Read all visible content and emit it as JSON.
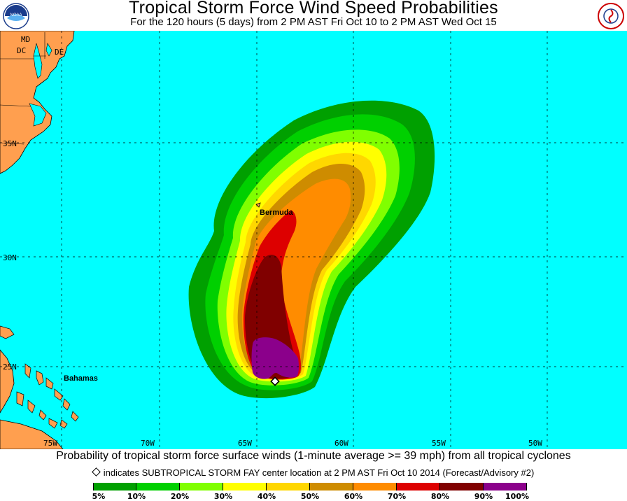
{
  "header": {
    "title": "Tropical Storm Force Wind Speed Probabilities",
    "subtitle": "For the 120 hours (5 days) from 2 PM AST Fri Oct 10 to 2 PM AST Wed Oct 15",
    "left_logo": "noaa-logo",
    "right_logo": "national-weather-service-logo"
  },
  "map": {
    "ocean_color": "#00ffff",
    "land_color": "#ff9f4f",
    "latitude_labels": [
      "35N",
      "30N",
      "25N"
    ],
    "longitude_labels": [
      "75W",
      "70W",
      "65W",
      "60W",
      "55W",
      "50W"
    ],
    "state_labels": [
      "MD",
      "DC",
      "DE"
    ],
    "places": [
      "Bermuda",
      "Bahamas"
    ]
  },
  "footer": {
    "description": "Probability of tropical storm force surface winds (1-minute average >= 39 mph) from all tropical cyclones",
    "note": "indicates SUBTROPICAL STORM FAY center location at 2 PM AST Fri Oct 10 2014 (Forecast/Advisory #2)"
  },
  "legend": {
    "colors": [
      "#00a000",
      "#00d000",
      "#80ff00",
      "#ffff00",
      "#ffd700",
      "#ce8c00",
      "#ff8c00",
      "#dd0000",
      "#800000",
      "#8b008b"
    ],
    "labels": [
      "5%",
      "10%",
      "20%",
      "30%",
      "40%",
      "50%",
      "60%",
      "70%",
      "80%",
      "90%",
      "100%"
    ]
  }
}
